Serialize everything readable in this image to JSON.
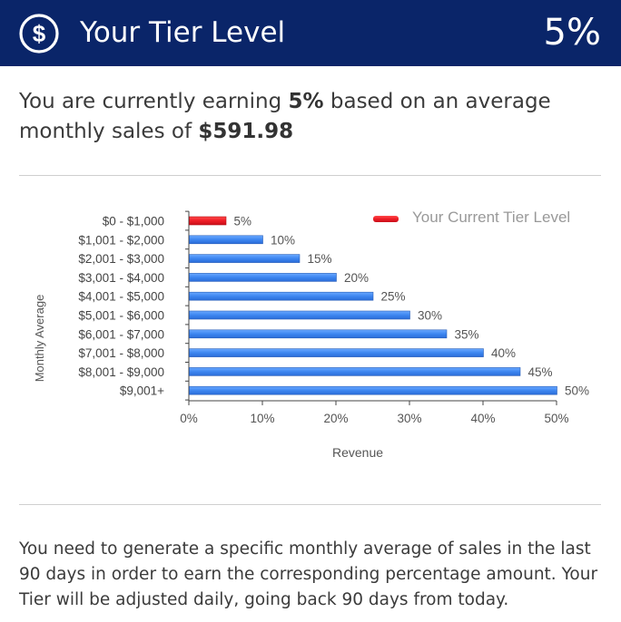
{
  "header": {
    "title": "Your Tier Level",
    "tier_value": "5%",
    "icon": "dollar-circle-icon"
  },
  "summary": {
    "prefix": "You are currently earning ",
    "percent": "5%",
    "middle": " based on an average monthly sales of ",
    "amount": "$591.98"
  },
  "footer": {
    "text": "You need to generate a specific monthly average of sales in the last 90 days in order to earn the corresponding percentage amount. Your Tier will be adjusted daily, going back 90 days from today."
  },
  "colors": {
    "header_bg": "#0a2569",
    "bar_blue": "#4a8ef0",
    "bar_red": "#ee1c25"
  },
  "chart_data": {
    "type": "bar",
    "orientation": "horizontal",
    "categories": [
      "$0 - $1,000",
      "$1,001 - $2,000",
      "$2,001 - $3,000",
      "$3,001 - $4,000",
      "$4,001 - $5,000",
      "$5,001 - $6,000",
      "$6,001 - $7,000",
      "$7,001 - $8,000",
      "$8,001 - $9,000",
      "$9,001+"
    ],
    "values": [
      5,
      10,
      15,
      20,
      25,
      30,
      35,
      40,
      45,
      50
    ],
    "value_labels": [
      "5%",
      "10%",
      "15%",
      "20%",
      "25%",
      "30%",
      "35%",
      "40%",
      "45%",
      "50%"
    ],
    "highlight_index": 0,
    "xlabel": "Revenue",
    "ylabel": "Monthly Average",
    "xlim": [
      0,
      50
    ],
    "xticks": [
      "0%",
      "10%",
      "20%",
      "30%",
      "40%",
      "50%"
    ],
    "legend": {
      "label": "Your Current Tier Level",
      "placement": "top-right"
    },
    "grid": false
  }
}
